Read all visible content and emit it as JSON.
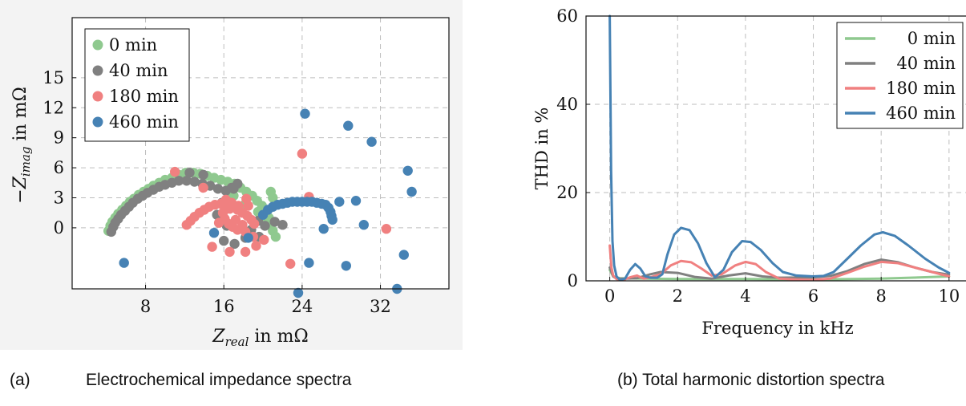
{
  "chart_data": [
    {
      "type": "scatter",
      "panel": "(a)",
      "xlabel_var": "Z",
      "xlabel_sub": "real",
      "xlabel_unit": " in mΩ",
      "ylabel_var": "−Z",
      "ylabel_sub": "imag",
      "ylabel_unit": " in mΩ",
      "xlim": [
        0.5,
        39
      ],
      "ylim": [
        -6.1,
        21
      ],
      "xticks": [
        8,
        16,
        24,
        32
      ],
      "yticks": [
        0,
        3,
        6,
        9,
        12,
        15
      ],
      "grid": true,
      "legend_position": "top-left",
      "colors": {
        "0 min": "#8fc98f",
        "40 min": "#808080",
        "180 min": "#f08080",
        "460 min": "#4682b4"
      },
      "series": [
        {
          "name": "0 min",
          "points": [
            [
              4.2,
              -0.3
            ],
            [
              4.4,
              0.2
            ],
            [
              4.6,
              0.6
            ],
            [
              4.9,
              1.0
            ],
            [
              5.2,
              1.4
            ],
            [
              5.6,
              1.8
            ],
            [
              6.0,
              2.2
            ],
            [
              6.4,
              2.6
            ],
            [
              6.8,
              2.9
            ],
            [
              7.3,
              3.3
            ],
            [
              7.8,
              3.6
            ],
            [
              8.3,
              3.9
            ],
            [
              8.8,
              4.2
            ],
            [
              9.4,
              4.5
            ],
            [
              10.0,
              4.8
            ],
            [
              10.7,
              5.0
            ],
            [
              11.4,
              5.3
            ],
            [
              12.1,
              5.5
            ],
            [
              12.9,
              5.5
            ],
            [
              13.6,
              5.4
            ],
            [
              14.3,
              5.2
            ],
            [
              15.0,
              5.0
            ],
            [
              15.7,
              4.8
            ],
            [
              16.4,
              4.6
            ],
            [
              17.1,
              4.4
            ],
            [
              17.7,
              4.0
            ],
            [
              18.3,
              3.6
            ],
            [
              18.9,
              3.2
            ],
            [
              19.4,
              2.7
            ],
            [
              19.9,
              2.2
            ],
            [
              20.3,
              1.6
            ],
            [
              20.6,
              1.0
            ],
            [
              20.8,
              0.4
            ],
            [
              21.0,
              -0.3
            ],
            [
              21.3,
              -0.9
            ],
            [
              20.8,
              3.6
            ],
            [
              21.0,
              3.0
            ],
            [
              19.5,
              1.6
            ],
            [
              20.2,
              0.8
            ],
            [
              17.0,
              3.2
            ],
            [
              16.5,
              2.9
            ],
            [
              18.2,
              2.4
            ]
          ]
        },
        {
          "name": "40 min",
          "points": [
            [
              4.5,
              -0.4
            ],
            [
              4.7,
              0.1
            ],
            [
              4.9,
              0.5
            ],
            [
              5.2,
              0.9
            ],
            [
              5.5,
              1.3
            ],
            [
              5.9,
              1.7
            ],
            [
              6.3,
              2.1
            ],
            [
              6.7,
              2.5
            ],
            [
              7.2,
              2.9
            ],
            [
              7.7,
              3.2
            ],
            [
              8.2,
              3.5
            ],
            [
              8.8,
              3.8
            ],
            [
              9.4,
              4.1
            ],
            [
              10.0,
              4.3
            ],
            [
              10.7,
              4.5
            ],
            [
              11.4,
              4.7
            ],
            [
              12.2,
              4.7
            ],
            [
              13.0,
              4.6
            ],
            [
              13.8,
              4.4
            ],
            [
              14.6,
              4.2
            ],
            [
              15.4,
              3.9
            ],
            [
              16.2,
              3.7
            ],
            [
              17.0,
              3.9
            ],
            [
              17.4,
              4.4
            ],
            [
              16.8,
              4.0
            ],
            [
              15.8,
              2.5
            ],
            [
              15.3,
              1.3
            ],
            [
              16.3,
              0.2
            ],
            [
              16.0,
              -1.3
            ],
            [
              17.1,
              -1.6
            ],
            [
              18.2,
              -1.0
            ],
            [
              18.8,
              -0.2
            ],
            [
              19.5,
              0.7
            ],
            [
              20.2,
              0.2
            ],
            [
              21.2,
              0.6
            ],
            [
              22.0,
              0.3
            ],
            [
              19.6,
              -0.9
            ],
            [
              13.9,
              5.3
            ],
            [
              12.5,
              5.5
            ]
          ]
        },
        {
          "name": "180 min",
          "points": [
            [
              11.0,
              5.6
            ],
            [
              13.9,
              4.0
            ],
            [
              12.2,
              0.3
            ],
            [
              12.6,
              0.7
            ],
            [
              13.0,
              1.1
            ],
            [
              13.5,
              1.5
            ],
            [
              14.0,
              1.8
            ],
            [
              14.5,
              2.1
            ],
            [
              15.1,
              2.3
            ],
            [
              15.7,
              2.4
            ],
            [
              16.3,
              2.3
            ],
            [
              16.9,
              2.1
            ],
            [
              17.4,
              1.8
            ],
            [
              17.9,
              1.5
            ],
            [
              18.4,
              1.2
            ],
            [
              18.8,
              0.8
            ],
            [
              19.1,
              0.4
            ],
            [
              16.2,
              2.8
            ],
            [
              16.8,
              2.5
            ],
            [
              17.5,
              2.2
            ],
            [
              16.6,
              1.9
            ],
            [
              17.2,
              0.8
            ],
            [
              17.9,
              0.3
            ],
            [
              18.2,
              -0.4
            ],
            [
              17.4,
              -0.2
            ],
            [
              18.3,
              2.9
            ],
            [
              18.5,
              2.2
            ],
            [
              16.9,
              0.1
            ],
            [
              14.8,
              -1.9
            ],
            [
              16.6,
              -2.4
            ],
            [
              18.2,
              -2.4
            ],
            [
              19.3,
              -1.8
            ],
            [
              24.0,
              7.4
            ],
            [
              24.7,
              3.1
            ],
            [
              22.8,
              -3.6
            ],
            [
              32.6,
              -0.1
            ],
            [
              15.9,
              1.5
            ],
            [
              16.1,
              0.9
            ],
            [
              16.5,
              0.4
            ],
            [
              19.0,
              -0.9
            ],
            [
              20.1,
              -1.2
            ],
            [
              15.5,
              0.5
            ]
          ]
        },
        {
          "name": "460 min",
          "points": [
            [
              5.8,
              -3.5
            ],
            [
              15.0,
              -0.5
            ],
            [
              18.5,
              -1.0
            ],
            [
              20.0,
              1.3
            ],
            [
              20.5,
              1.8
            ],
            [
              21.0,
              2.1
            ],
            [
              21.5,
              2.3
            ],
            [
              22.0,
              2.4
            ],
            [
              22.5,
              2.5
            ],
            [
              23.0,
              2.6
            ],
            [
              23.5,
              2.6
            ],
            [
              24.0,
              2.6
            ],
            [
              24.5,
              2.6
            ],
            [
              25.0,
              2.6
            ],
            [
              25.5,
              2.5
            ],
            [
              26.0,
              2.4
            ],
            [
              26.4,
              2.3
            ],
            [
              26.7,
              2.0
            ],
            [
              26.9,
              1.6
            ],
            [
              27.0,
              1.2
            ],
            [
              27.1,
              0.8
            ],
            [
              27.8,
              2.6
            ],
            [
              29.5,
              2.7
            ],
            [
              24.3,
              11.4
            ],
            [
              28.7,
              10.2
            ],
            [
              31.1,
              8.6
            ],
            [
              34.8,
              5.7
            ],
            [
              35.2,
              3.6
            ],
            [
              30.3,
              0.3
            ],
            [
              26.2,
              -0.1
            ],
            [
              24.7,
              -3.5
            ],
            [
              28.5,
              -3.8
            ],
            [
              23.6,
              -6.5
            ],
            [
              34.4,
              -2.7
            ],
            [
              33.7,
              -6.1
            ]
          ]
        }
      ]
    },
    {
      "type": "line",
      "panel": "(b)",
      "xlabel": "Frequency in kHz",
      "ylabel": "THD in %",
      "xlim": [
        -0.7,
        10.5
      ],
      "ylim": [
        0,
        60
      ],
      "xticks": [
        0,
        2,
        4,
        6,
        8,
        10
      ],
      "yticks": [
        0,
        20,
        40,
        60
      ],
      "grid": true,
      "legend_position": "top-right",
      "colors": {
        "0 min": "#8fc98f",
        "40 min": "#808080",
        "180 min": "#f08080",
        "460 min": "#4682b4"
      },
      "series": [
        {
          "name": "0 min",
          "points": [
            [
              0,
              2.5
            ],
            [
              0.1,
              1
            ],
            [
              0.3,
              0.6
            ],
            [
              1,
              0.5
            ],
            [
              2,
              0.4
            ],
            [
              4,
              0.4
            ],
            [
              6,
              0.3
            ],
            [
              8,
              0.5
            ],
            [
              10,
              1.0
            ]
          ]
        },
        {
          "name": "40 min",
          "points": [
            [
              0,
              3
            ],
            [
              0.1,
              1
            ],
            [
              0.2,
              0.5
            ],
            [
              0.5,
              0.5
            ],
            [
              0.8,
              0.6
            ],
            [
              1.2,
              1.5
            ],
            [
              1.5,
              2.0
            ],
            [
              2.0,
              1.8
            ],
            [
              2.5,
              0.9
            ],
            [
              3.0,
              0.5
            ],
            [
              3.5,
              1.2
            ],
            [
              4.0,
              1.7
            ],
            [
              4.5,
              1.0
            ],
            [
              5.0,
              0.7
            ],
            [
              6.0,
              0.8
            ],
            [
              6.5,
              1.1
            ],
            [
              7.0,
              2.2
            ],
            [
              7.5,
              3.8
            ],
            [
              8.0,
              4.8
            ],
            [
              8.5,
              4.2
            ],
            [
              9.0,
              3.0
            ],
            [
              9.5,
              2.0
            ],
            [
              10.0,
              1.4
            ]
          ]
        },
        {
          "name": "180 min",
          "points": [
            [
              0,
              8
            ],
            [
              0.05,
              3
            ],
            [
              0.1,
              1.2
            ],
            [
              0.2,
              0.4
            ],
            [
              0.4,
              0.2
            ],
            [
              0.6,
              0.8
            ],
            [
              0.8,
              1.2
            ],
            [
              1.0,
              0.5
            ],
            [
              1.2,
              0.8
            ],
            [
              1.5,
              1.5
            ],
            [
              1.8,
              3.5
            ],
            [
              2.1,
              4.5
            ],
            [
              2.4,
              4.2
            ],
            [
              2.7,
              2.8
            ],
            [
              3.0,
              1.2
            ],
            [
              3.3,
              1.5
            ],
            [
              3.7,
              3.5
            ],
            [
              4.0,
              4.3
            ],
            [
              4.3,
              3.8
            ],
            [
              4.6,
              2.0
            ],
            [
              5.0,
              0.5
            ],
            [
              5.5,
              0.3
            ],
            [
              6.0,
              0.2
            ],
            [
              6.5,
              0.5
            ],
            [
              7.0,
              1.8
            ],
            [
              7.5,
              3.2
            ],
            [
              8.0,
              4.3
            ],
            [
              8.5,
              4.0
            ],
            [
              9.0,
              3.0
            ],
            [
              9.5,
              2.0
            ],
            [
              10.0,
              1.0
            ]
          ]
        },
        {
          "name": "460 min",
          "points": [
            [
              0,
              60
            ],
            [
              0.04,
              25
            ],
            [
              0.08,
              9
            ],
            [
              0.13,
              3.5
            ],
            [
              0.2,
              1.0
            ],
            [
              0.3,
              0.2
            ],
            [
              0.45,
              0.5
            ],
            [
              0.6,
              2.5
            ],
            [
              0.75,
              3.8
            ],
            [
              0.9,
              2.8
            ],
            [
              1.05,
              1.0
            ],
            [
              1.2,
              0.7
            ],
            [
              1.4,
              0.7
            ],
            [
              1.55,
              1.5
            ],
            [
              1.7,
              6.0
            ],
            [
              1.9,
              10.5
            ],
            [
              2.1,
              12.0
            ],
            [
              2.35,
              11.5
            ],
            [
              2.6,
              8.5
            ],
            [
              2.85,
              4.0
            ],
            [
              3.1,
              0.8
            ],
            [
              3.35,
              2.5
            ],
            [
              3.6,
              6.5
            ],
            [
              3.9,
              9.0
            ],
            [
              4.15,
              8.8
            ],
            [
              4.45,
              7.0
            ],
            [
              4.8,
              4.0
            ],
            [
              5.1,
              2.0
            ],
            [
              5.5,
              1.2
            ],
            [
              6.0,
              1.0
            ],
            [
              6.3,
              1.1
            ],
            [
              6.6,
              2.0
            ],
            [
              7.0,
              5.0
            ],
            [
              7.4,
              8.0
            ],
            [
              7.8,
              10.5
            ],
            [
              8.05,
              11.0
            ],
            [
              8.4,
              10.2
            ],
            [
              8.8,
              8.0
            ],
            [
              9.3,
              5.0
            ],
            [
              9.7,
              3.0
            ],
            [
              10.0,
              1.8
            ]
          ]
        }
      ]
    }
  ],
  "captions": {
    "a_label": "(a)",
    "a_text": "Electrochemical impedance spectra",
    "b_text": "(b) Total harmonic distortion spectra"
  }
}
